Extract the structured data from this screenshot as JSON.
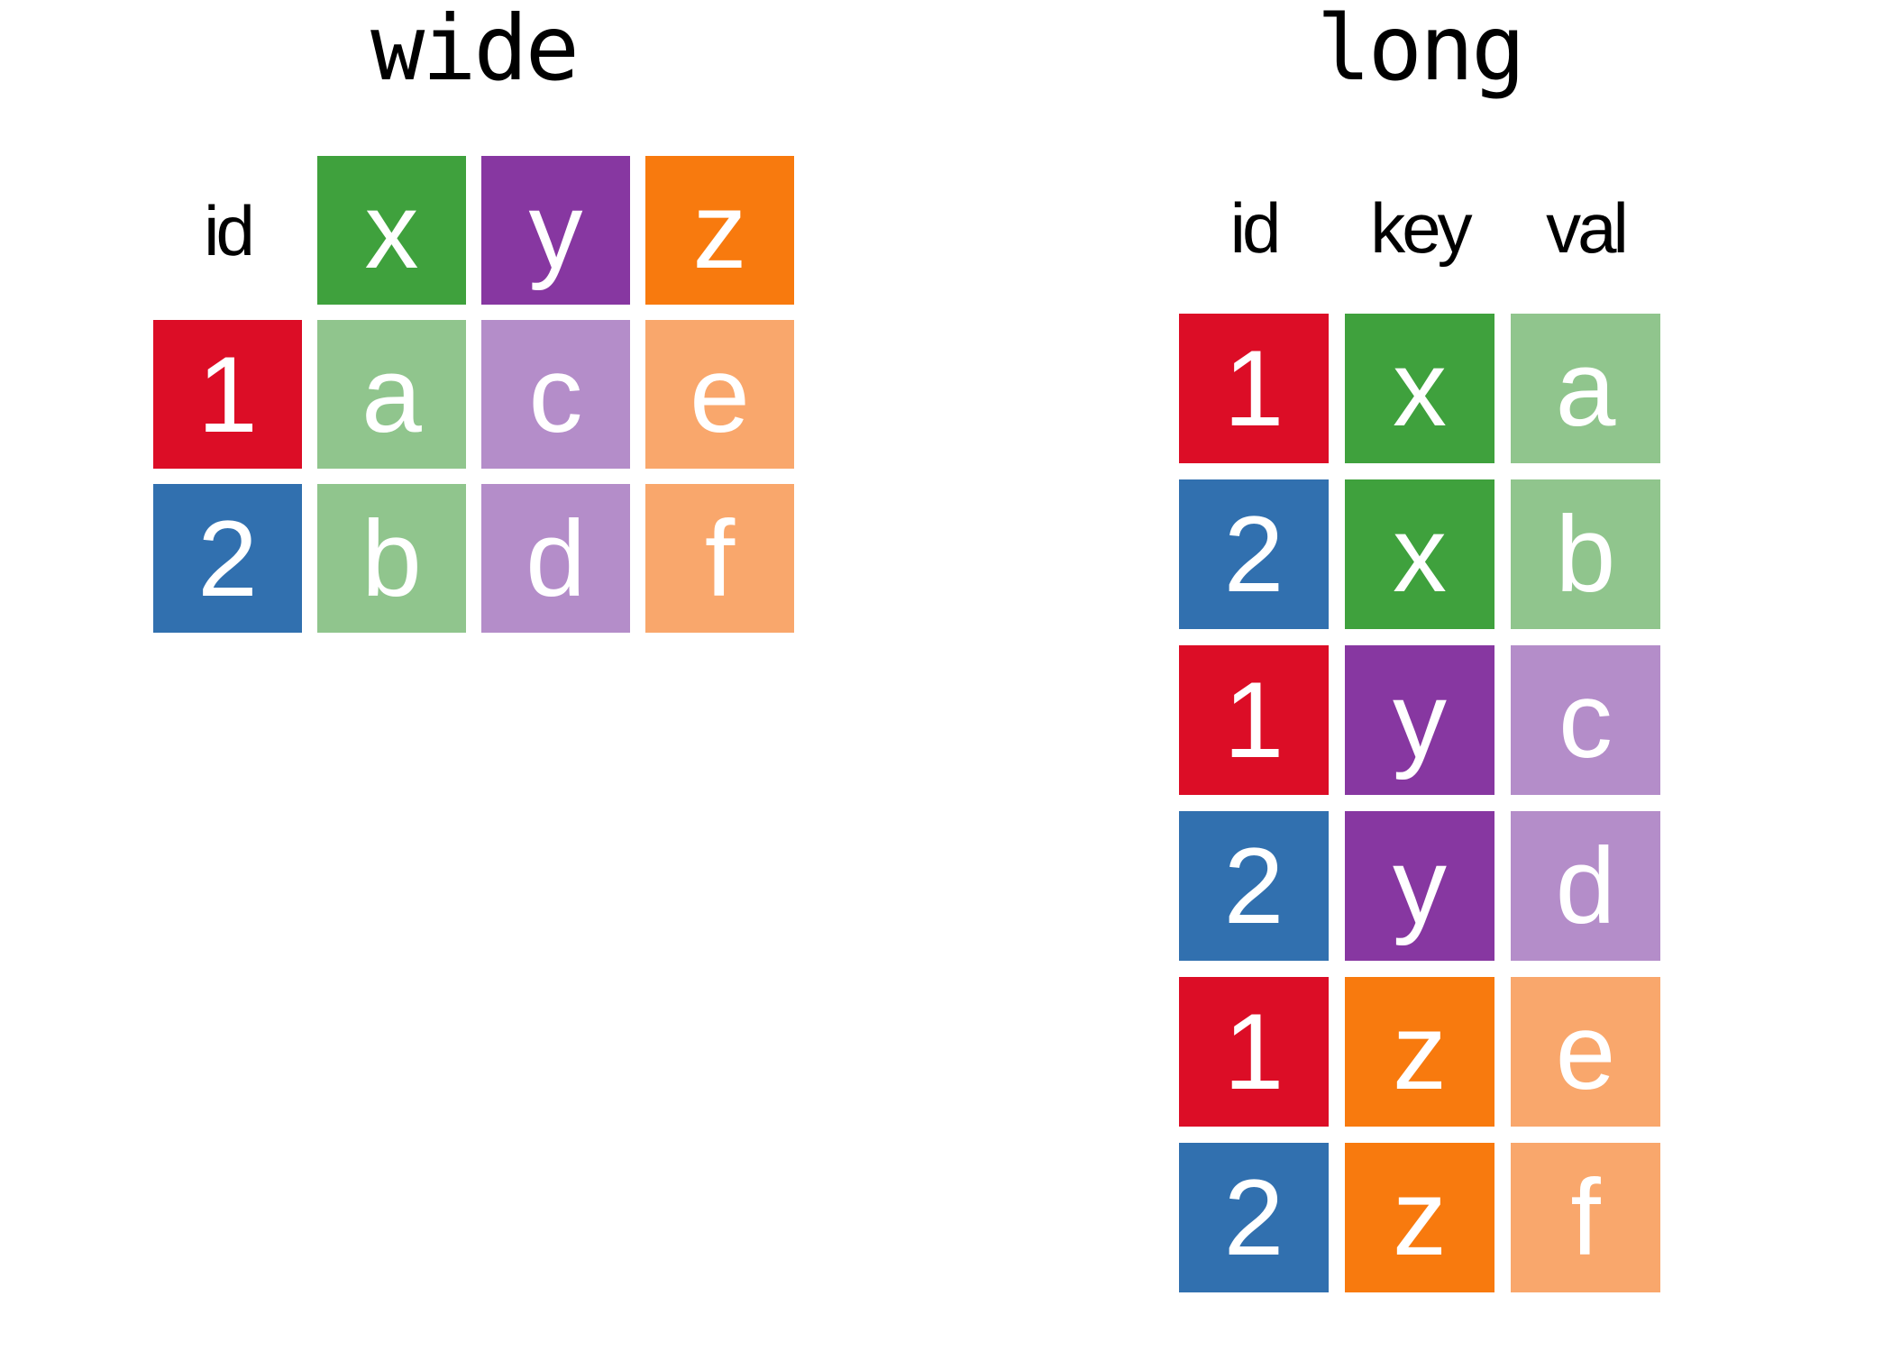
{
  "palette": {
    "background": "#FFFFFF",
    "text": "#000000",
    "cell_text": "#FFFFFF",
    "red": "#DC0D26",
    "blue": "#3170AF",
    "green": "#3FA13D",
    "green_light": "#90C58D",
    "purple": "#8737A1",
    "purple_light": "#B48DC9",
    "orange": "#F87A0E",
    "orange_light": "#F9A76C"
  },
  "wide_table": {
    "title": "wide",
    "id_column_header": "id",
    "key_headers": [
      {
        "label": "x",
        "color": "green"
      },
      {
        "label": "y",
        "color": "purple"
      },
      {
        "label": "z",
        "color": "orange"
      }
    ],
    "rows": [
      {
        "id": {
          "label": "1",
          "color": "red"
        },
        "values": [
          {
            "label": "a",
            "color": "green_light"
          },
          {
            "label": "c",
            "color": "purple_light"
          },
          {
            "label": "e",
            "color": "orange_light"
          }
        ]
      },
      {
        "id": {
          "label": "2",
          "color": "blue"
        },
        "values": [
          {
            "label": "b",
            "color": "green_light"
          },
          {
            "label": "d",
            "color": "purple_light"
          },
          {
            "label": "f",
            "color": "orange_light"
          }
        ]
      }
    ]
  },
  "long_table": {
    "title": "long",
    "column_headers": [
      "id",
      "key",
      "val"
    ],
    "rows": [
      {
        "id": {
          "label": "1",
          "color": "red"
        },
        "key": {
          "label": "x",
          "color": "green"
        },
        "val": {
          "label": "a",
          "color": "green_light"
        }
      },
      {
        "id": {
          "label": "2",
          "color": "blue"
        },
        "key": {
          "label": "x",
          "color": "green"
        },
        "val": {
          "label": "b",
          "color": "green_light"
        }
      },
      {
        "id": {
          "label": "1",
          "color": "red"
        },
        "key": {
          "label": "y",
          "color": "purple"
        },
        "val": {
          "label": "c",
          "color": "purple_light"
        }
      },
      {
        "id": {
          "label": "2",
          "color": "blue"
        },
        "key": {
          "label": "y",
          "color": "purple"
        },
        "val": {
          "label": "d",
          "color": "purple_light"
        }
      },
      {
        "id": {
          "label": "1",
          "color": "red"
        },
        "key": {
          "label": "z",
          "color": "orange"
        },
        "val": {
          "label": "e",
          "color": "orange_light"
        }
      },
      {
        "id": {
          "label": "2",
          "color": "blue"
        },
        "key": {
          "label": "z",
          "color": "orange"
        },
        "val": {
          "label": "f",
          "color": "orange_light"
        }
      }
    ]
  }
}
